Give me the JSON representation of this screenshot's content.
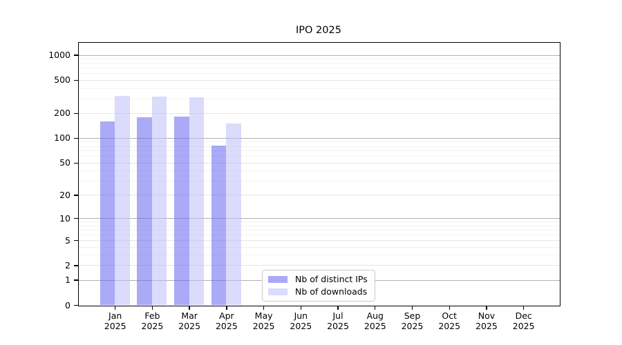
{
  "title": "IPO 2025",
  "x_axis": {
    "months": [
      "Jan",
      "Feb",
      "Mar",
      "Apr",
      "May",
      "Jun",
      "Jul",
      "Aug",
      "Sep",
      "Oct",
      "Nov",
      "Dec"
    ],
    "year": "2025"
  },
  "y_axis": {
    "tick_labels": [
      "0",
      "1",
      "2",
      "5",
      "10",
      "20",
      "50",
      "100",
      "200",
      "500",
      "1000"
    ]
  },
  "chart_data": {
    "type": "bar",
    "title": "IPO 2025",
    "categories": [
      "Jan 2025",
      "Feb 2025",
      "Mar 2025",
      "Apr 2025",
      "May 2025",
      "Jun 2025",
      "Jul 2025",
      "Aug 2025",
      "Sep 2025",
      "Oct 2025",
      "Nov 2025",
      "Dec 2025"
    ],
    "series": [
      {
        "name": "Nb of distinct IPs",
        "color": "rgba(100,100,240,0.55)",
        "values": [
          160,
          178,
          181,
          81,
          null,
          null,
          null,
          null,
          null,
          null,
          null,
          null
        ]
      },
      {
        "name": "Nb of downloads",
        "color": "rgba(190,190,248,0.55)",
        "values": [
          325,
          315,
          310,
          150,
          null,
          null,
          null,
          null,
          null,
          null,
          null,
          null
        ]
      }
    ],
    "y_scale": "symlog",
    "y_ticks": [
      0,
      1,
      2,
      5,
      10,
      20,
      50,
      100,
      200,
      500,
      1000
    ],
    "y_minor_ticks": [
      3,
      4,
      6,
      7,
      8,
      9,
      30,
      40,
      60,
      70,
      80,
      90,
      300,
      400,
      600,
      700,
      800,
      900
    ],
    "y_decade_ticks": [
      1,
      10,
      100,
      1000
    ],
    "ylim": [
      0,
      1400
    ],
    "grid": "both",
    "legend_position": "lower center inside"
  }
}
